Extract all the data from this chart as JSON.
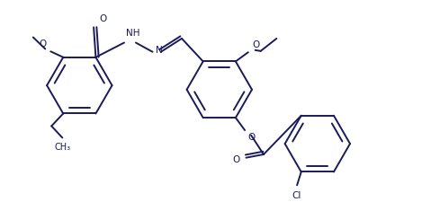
{
  "line_color": "#1a1a5a",
  "background": "#ffffff",
  "lw": 1.4,
  "fs": 7.5,
  "xlim": [
    0,
    10
  ],
  "ylim": [
    0,
    4.8
  ],
  "r1cx": 1.85,
  "r1cy": 2.75,
  "r2cx": 5.2,
  "r2cy": 2.65,
  "r3cx": 7.55,
  "r3cy": 1.35,
  "ring_r": 0.78
}
